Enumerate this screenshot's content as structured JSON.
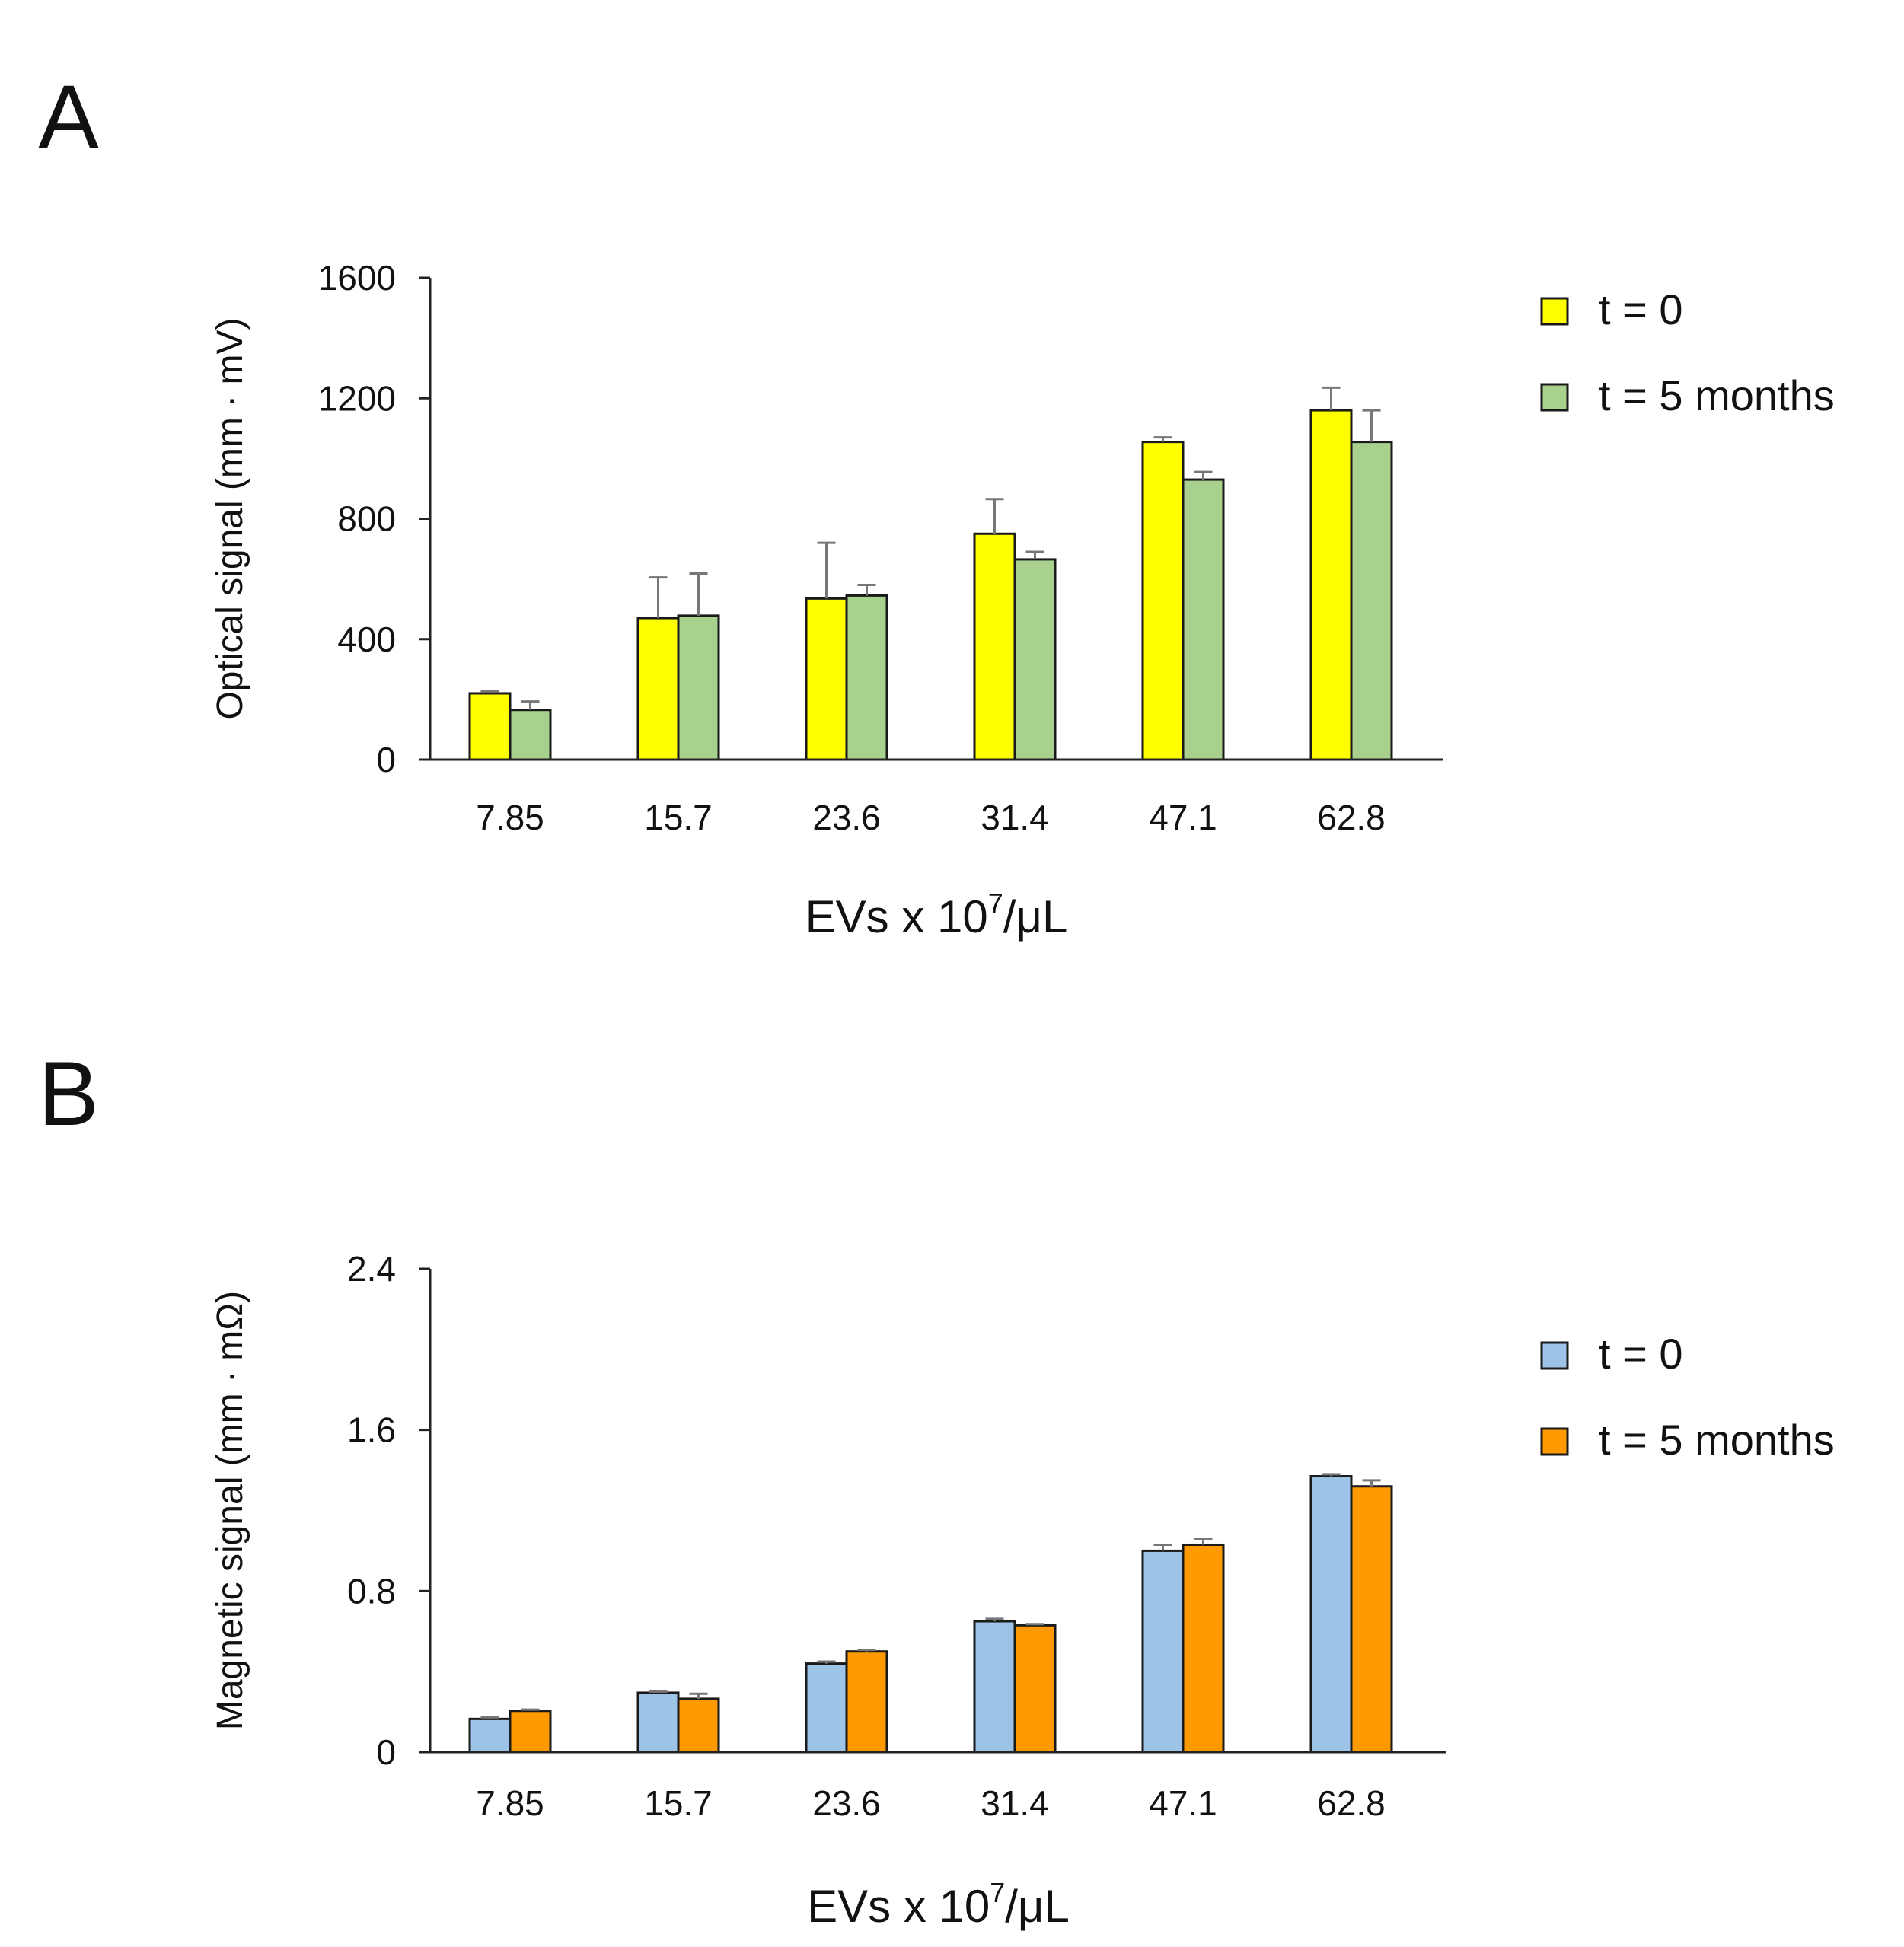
{
  "figure": {
    "panels": [
      "A",
      "B"
    ]
  },
  "chart_data": [
    {
      "panel": "A",
      "type": "bar",
      "title": "",
      "ylabel": "Optical signal (mm · mV)",
      "xlabel_base": "EVs x 10",
      "xlabel_sup": "7",
      "xlabel_unit": "/μL",
      "ylim": [
        0,
        1600
      ],
      "yticks": [
        0,
        400,
        800,
        1200,
        1600
      ],
      "ytick_labels": [
        "0",
        "400",
        "800",
        "1200",
        "1600"
      ],
      "categories": [
        "7.85",
        "15.7",
        "23.6",
        "31.4",
        "47.1",
        "62.8"
      ],
      "series": [
        {
          "name": "t = 0",
          "color": "#ffff00",
          "values": [
            220,
            470,
            535,
            750,
            1055,
            1160
          ],
          "errors": [
            8,
            135,
            185,
            115,
            15,
            75
          ]
        },
        {
          "name": "t = 5 months",
          "color": "#a9d18e",
          "values": [
            165,
            478,
            545,
            665,
            930,
            1055
          ],
          "errors": [
            28,
            140,
            35,
            25,
            25,
            105
          ]
        }
      ],
      "legend_position": "top-right",
      "grid": false
    },
    {
      "panel": "B",
      "type": "bar",
      "title": "",
      "ylabel": "Magnetic signal (mm · mΩ)",
      "xlabel_base": "EVs x 10",
      "xlabel_sup": "7",
      "xlabel_unit": "/μL",
      "ylim": [
        0,
        2.4
      ],
      "yticks": [
        0,
        0.8,
        1.6,
        2.4
      ],
      "ytick_labels": [
        "0",
        "0.8",
        "1.6",
        "2.4"
      ],
      "categories": [
        "7.85",
        "15.7",
        "23.6",
        "31.4",
        "47.1",
        "62.8"
      ],
      "series": [
        {
          "name": "t = 0",
          "color": "#9dc3e6",
          "values": [
            0.165,
            0.295,
            0.44,
            0.65,
            1.0,
            1.37
          ],
          "errors": [
            0.008,
            0.006,
            0.01,
            0.012,
            0.03,
            0.01
          ]
        },
        {
          "name": "t = 5 months",
          "color": "#ff9900",
          "values": [
            0.205,
            0.265,
            0.5,
            0.63,
            1.03,
            1.32
          ],
          "errors": [
            0.006,
            0.025,
            0.008,
            0.006,
            0.03,
            0.03
          ]
        }
      ],
      "legend_position": "top-right",
      "grid": false
    }
  ]
}
